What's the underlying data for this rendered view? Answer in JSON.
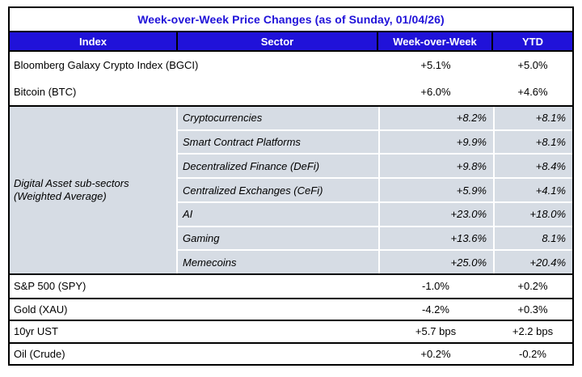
{
  "title": "Week-over-Week Price Changes (as of Sunday, 01/04/26)",
  "colors": {
    "accent_blue": "#2012D9",
    "subsector_bg": "#D6DCE4",
    "border_black": "#000000",
    "divider_white": "#FFFFFF"
  },
  "header": {
    "index": "Index",
    "sector": "Sector",
    "wow": "Week-over-Week",
    "ytd": "YTD"
  },
  "sections": {
    "top": [
      {
        "label": "Bloomberg Galaxy Crypto Index (BGCI)",
        "wow": "+5.1%",
        "ytd": "+5.0%"
      },
      {
        "label": "Bitcoin (BTC)",
        "wow": "+6.0%",
        "ytd": "+4.6%"
      }
    ],
    "subsectors": {
      "label_line1": "Digital Asset sub-sectors",
      "label_line2": "(Weighted Average)",
      "rows": [
        {
          "sector": "Cryptocurrencies",
          "wow": "+8.2%",
          "ytd": "+8.1%"
        },
        {
          "sector": "Smart Contract Platforms",
          "wow": "+9.9%",
          "ytd": "+8.1%"
        },
        {
          "sector": "Decentralized Finance (DeFi)",
          "wow": "+9.8%",
          "ytd": "+8.4%"
        },
        {
          "sector": "Centralized Exchanges (CeFi)",
          "wow": "+5.9%",
          "ytd": "+4.1%"
        },
        {
          "sector": "AI",
          "wow": "+23.0%",
          "ytd": "+18.0%"
        },
        {
          "sector": "Gaming",
          "wow": "+13.6%",
          "ytd": "8.1%"
        },
        {
          "sector": "Memecoins",
          "wow": "+25.0%",
          "ytd": "+20.4%"
        }
      ]
    },
    "bottom": [
      {
        "label": "S&P 500 (SPY)",
        "wow": "-1.0%",
        "ytd": "+0.2%"
      },
      {
        "label": "Gold (XAU)",
        "wow": "-4.2%",
        "ytd": "+0.3%"
      },
      {
        "label": "10yr UST",
        "wow": "+5.7 bps",
        "ytd": "+2.2 bps"
      },
      {
        "label": "Oil (Crude)",
        "wow": "+0.2%",
        "ytd": "-0.2%"
      }
    ]
  },
  "chart_data": {
    "type": "table",
    "title": "Week-over-Week Price Changes (as of Sunday, 01/04/26)",
    "columns": [
      "Index",
      "Sector",
      "Week-over-Week",
      "YTD"
    ],
    "rows": [
      [
        "Bloomberg Galaxy Crypto Index (BGCI)",
        "",
        "+5.1%",
        "+5.0%"
      ],
      [
        "Bitcoin (BTC)",
        "",
        "+6.0%",
        "+4.6%"
      ],
      [
        "Digital Asset sub-sectors (Weighted Average)",
        "Cryptocurrencies",
        "+8.2%",
        "+8.1%"
      ],
      [
        "Digital Asset sub-sectors (Weighted Average)",
        "Smart Contract Platforms",
        "+9.9%",
        "+8.1%"
      ],
      [
        "Digital Asset sub-sectors (Weighted Average)",
        "Decentralized Finance (DeFi)",
        "+9.8%",
        "+8.4%"
      ],
      [
        "Digital Asset sub-sectors (Weighted Average)",
        "Centralized Exchanges (CeFi)",
        "+5.9%",
        "+4.1%"
      ],
      [
        "Digital Asset sub-sectors (Weighted Average)",
        "AI",
        "+23.0%",
        "+18.0%"
      ],
      [
        "Digital Asset sub-sectors (Weighted Average)",
        "Gaming",
        "+13.6%",
        "8.1%"
      ],
      [
        "Digital Asset sub-sectors (Weighted Average)",
        "Memecoins",
        "+25.0%",
        "+20.4%"
      ],
      [
        "S&P 500 (SPY)",
        "",
        "-1.0%",
        "+0.2%"
      ],
      [
        "Gold (XAU)",
        "",
        "-4.2%",
        "+0.3%"
      ],
      [
        "10yr UST",
        "",
        "+5.7 bps",
        "+2.2 bps"
      ],
      [
        "Oil (Crude)",
        "",
        "+0.2%",
        "-0.2%"
      ]
    ]
  }
}
